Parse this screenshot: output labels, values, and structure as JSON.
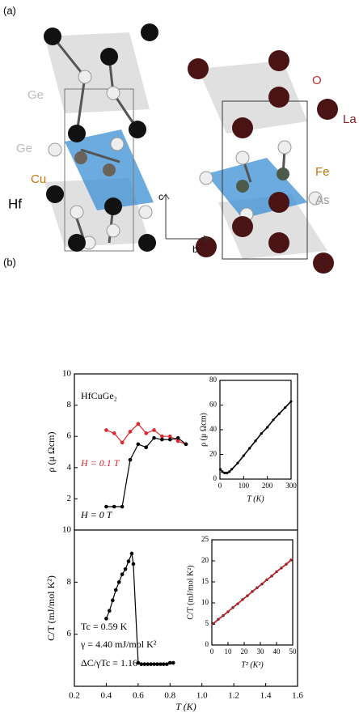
{
  "panel_labels": [
    "(a)",
    "(b)"
  ],
  "structure_labels": {
    "left": [
      "Ge",
      "Ge",
      "Cu",
      "Hf"
    ],
    "right": [
      "O",
      "La",
      "Fe",
      "As"
    ],
    "axes": [
      "c",
      "b"
    ]
  },
  "chart_data": [
    {
      "type": "line",
      "ylabel": "ρ (μ Ωcm)",
      "xlim": [
        0.2,
        1.6
      ],
      "ylim": [
        0,
        10
      ],
      "yticks": [
        2,
        4,
        6,
        8,
        10
      ],
      "annotations": [
        "HfCuGe₂"
      ],
      "series": [
        {
          "name": "H = 0.1 T",
          "color": "#e0262b",
          "marker": true,
          "x": [
            0.4,
            0.45,
            0.5,
            0.55,
            0.6,
            0.65,
            0.7,
            0.75,
            0.8,
            0.85,
            0.9
          ],
          "values": [
            6.4,
            6.2,
            5.6,
            6.3,
            6.8,
            6.2,
            6.4,
            6.0,
            6.0,
            5.7,
            5.5
          ]
        },
        {
          "name": "H = 0 T",
          "color": "#000000",
          "marker": true,
          "x": [
            0.4,
            0.45,
            0.5,
            0.55,
            0.6,
            0.65,
            0.7,
            0.75,
            0.8,
            0.85,
            0.9
          ],
          "values": [
            1.5,
            1.5,
            1.5,
            4.5,
            5.5,
            5.3,
            5.9,
            5.8,
            5.8,
            5.9,
            5.5
          ]
        }
      ]
    },
    {
      "type": "line",
      "xlabel": "T (K)",
      "ylabel": "C/T (mJ/mol K²)",
      "xlim": [
        0.2,
        1.6
      ],
      "xticks": [
        0.2,
        0.4,
        0.6,
        0.8,
        {
          "value": 1.0,
          "label": "1.0"
        },
        1.2,
        1.4,
        1.6
      ],
      "ylim": [
        4,
        10
      ],
      "yticks": [
        6,
        8,
        10
      ],
      "annotations": [
        "Tc = 0.59 K",
        "γ = 4.40 mJ/mol K²",
        "ΔC/γTc = 1.16"
      ],
      "series": [
        {
          "color": "#000000",
          "marker": true,
          "x": [
            0.4,
            0.42,
            0.44,
            0.46,
            0.48,
            0.5,
            0.52,
            0.54,
            0.56,
            0.57,
            0.6,
            0.62,
            0.64,
            0.66,
            0.68,
            0.7,
            0.72,
            0.74,
            0.76,
            0.78,
            0.8,
            0.82
          ],
          "values": [
            6.6,
            6.9,
            7.3,
            7.7,
            8.0,
            8.3,
            8.5,
            8.8,
            9.1,
            8.7,
            4.9,
            4.85,
            4.85,
            4.85,
            4.85,
            4.85,
            4.85,
            4.85,
            4.85,
            4.85,
            4.9,
            4.9
          ]
        }
      ]
    },
    {
      "type": "line",
      "xlabel": "T (K)",
      "ylabel": "ρ (μ Ωcm)",
      "xlim": [
        0,
        300
      ],
      "xticks": [
        0,
        100,
        200,
        300
      ],
      "ylim": [
        0,
        80
      ],
      "yticks": [
        0,
        20,
        40,
        60,
        80
      ],
      "series": [
        {
          "color": "#000000",
          "marker": true,
          "x": [
            2,
            10,
            20,
            30,
            40,
            50,
            75,
            100,
            125,
            150,
            175,
            200,
            225,
            250,
            275,
            300
          ],
          "values": [
            8,
            6,
            5,
            5,
            6,
            8,
            13,
            19,
            25,
            31,
            37,
            42,
            48,
            53,
            58,
            63
          ]
        }
      ]
    },
    {
      "type": "line",
      "xlabel": "T² (K²)",
      "ylabel": "C/T (mJ/mol K²)",
      "xlim": [
        0,
        50
      ],
      "xticks": [
        0,
        10,
        20,
        30,
        40,
        50
      ],
      "ylim": [
        0,
        25
      ],
      "yticks": [
        0,
        5,
        10,
        15,
        20,
        25
      ],
      "series": [
        {
          "color": "#000000",
          "marker": true,
          "x": [
            1,
            4,
            7,
            10,
            13,
            16,
            19,
            22,
            25,
            28,
            31,
            34,
            37,
            40,
            43,
            46,
            49
          ],
          "values": [
            5.1,
            6.1,
            7.0,
            7.9,
            8.9,
            9.8,
            10.8,
            11.7,
            12.7,
            13.6,
            14.5,
            15.5,
            16.4,
            17.4,
            18.3,
            19.2,
            20.2
          ]
        },
        {
          "color": "#d0262b",
          "marker": false,
          "x": [
            0,
            50
          ],
          "values": [
            4.8,
            20.5
          ]
        }
      ]
    }
  ]
}
